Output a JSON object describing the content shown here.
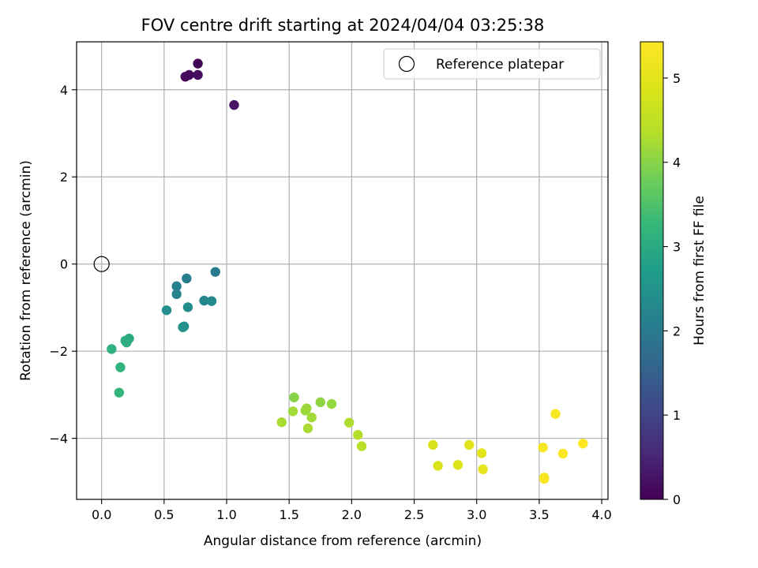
{
  "chart_data": {
    "type": "scatter",
    "title": "FOV centre drift starting at 2024/04/04 03:25:38",
    "xlabel": "Angular distance from reference (arcmin)",
    "ylabel": "Rotation from reference (arcmin)",
    "xlim": [
      -0.2,
      4.05
    ],
    "ylim": [
      -5.4,
      5.1
    ],
    "xticks": [
      0.0,
      0.5,
      1.0,
      1.5,
      2.0,
      2.5,
      3.0,
      3.5,
      4.0
    ],
    "yticks": [
      -4,
      -2,
      0,
      2,
      4
    ],
    "grid": true,
    "colormap": "viridis",
    "colorbar": {
      "label": "Hours from first FF file",
      "range": [
        0,
        5.43
      ],
      "ticks": [
        0,
        1,
        2,
        3,
        4,
        5
      ]
    },
    "reference": {
      "label": "Reference platepar",
      "x": 0.0,
      "y": 0.0
    },
    "legend_position": "top-right",
    "points": [
      {
        "x": 0.77,
        "y": 4.6,
        "c": 0.05
      },
      {
        "x": 0.67,
        "y": 4.3,
        "c": 0.1
      },
      {
        "x": 0.7,
        "y": 4.34,
        "c": 0.12
      },
      {
        "x": 0.77,
        "y": 4.34,
        "c": 0.15
      },
      {
        "x": 1.06,
        "y": 3.65,
        "c": 0.25
      },
      {
        "x": 0.91,
        "y": -0.18,
        "c": 2.05
      },
      {
        "x": 0.68,
        "y": -0.33,
        "c": 2.1
      },
      {
        "x": 0.6,
        "y": -0.51,
        "c": 2.15
      },
      {
        "x": 0.6,
        "y": -0.69,
        "c": 2.2
      },
      {
        "x": 0.82,
        "y": -0.84,
        "c": 2.25
      },
      {
        "x": 0.88,
        "y": -0.85,
        "c": 2.3
      },
      {
        "x": 0.69,
        "y": -0.99,
        "c": 2.35
      },
      {
        "x": 0.52,
        "y": -1.06,
        "c": 2.4
      },
      {
        "x": 0.66,
        "y": -1.43,
        "c": 2.45
      },
      {
        "x": 0.65,
        "y": -1.45,
        "c": 2.5
      },
      {
        "x": 0.22,
        "y": -1.71,
        "c": 2.95
      },
      {
        "x": 0.19,
        "y": -1.76,
        "c": 3.0
      },
      {
        "x": 0.2,
        "y": -1.8,
        "c": 3.05
      },
      {
        "x": 0.08,
        "y": -1.95,
        "c": 3.1
      },
      {
        "x": 0.15,
        "y": -2.37,
        "c": 3.15
      },
      {
        "x": 0.14,
        "y": -2.95,
        "c": 3.2
      },
      {
        "x": 1.54,
        "y": -3.06,
        "c": 4.0
      },
      {
        "x": 1.75,
        "y": -3.17,
        "c": 4.05
      },
      {
        "x": 1.84,
        "y": -3.21,
        "c": 4.1
      },
      {
        "x": 1.64,
        "y": -3.31,
        "c": 4.15
      },
      {
        "x": 1.63,
        "y": -3.36,
        "c": 4.15
      },
      {
        "x": 1.53,
        "y": -3.38,
        "c": 4.2
      },
      {
        "x": 1.68,
        "y": -3.52,
        "c": 4.2
      },
      {
        "x": 1.44,
        "y": -3.63,
        "c": 4.25
      },
      {
        "x": 1.65,
        "y": -3.77,
        "c": 4.25
      },
      {
        "x": 1.98,
        "y": -3.64,
        "c": 4.3
      },
      {
        "x": 2.05,
        "y": -3.92,
        "c": 4.35
      },
      {
        "x": 2.08,
        "y": -4.18,
        "c": 4.4
      },
      {
        "x": 2.65,
        "y": -4.15,
        "c": 4.8
      },
      {
        "x": 2.69,
        "y": -4.63,
        "c": 4.85
      },
      {
        "x": 2.85,
        "y": -4.61,
        "c": 4.9
      },
      {
        "x": 2.94,
        "y": -4.15,
        "c": 4.95
      },
      {
        "x": 3.04,
        "y": -4.34,
        "c": 5.0
      },
      {
        "x": 3.05,
        "y": -4.71,
        "c": 5.05
      },
      {
        "x": 3.53,
        "y": -4.21,
        "c": 5.3
      },
      {
        "x": 3.54,
        "y": -4.9,
        "c": 5.35
      },
      {
        "x": 3.54,
        "y": -4.93,
        "c": 5.35
      },
      {
        "x": 3.63,
        "y": -3.44,
        "c": 5.38
      },
      {
        "x": 3.69,
        "y": -4.35,
        "c": 5.4
      },
      {
        "x": 3.85,
        "y": -4.12,
        "c": 5.43
      }
    ]
  }
}
